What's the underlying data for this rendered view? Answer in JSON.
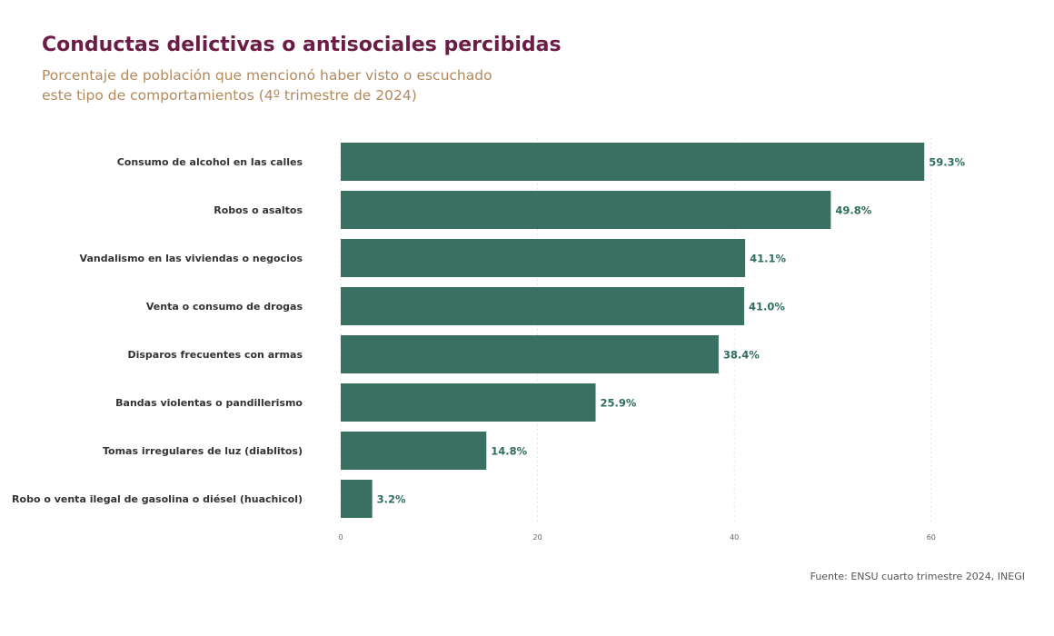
{
  "title": "Conductas delictivas o antisociales percibidas",
  "subtitle": "Porcentaje de población que mencionó haber visto o escuchado este tipo de comportamientos (4º trimestre de 2024)",
  "source": "Fuente: ENSU cuarto trimestre 2024, INEGI",
  "colors": {
    "bar": "#3a7061",
    "value_label": "#2f6d5e",
    "title": "#6b1d45",
    "subtitle": "#b38a5e"
  },
  "chart_data": {
    "type": "bar",
    "orientation": "horizontal",
    "categories": [
      "Consumo de alcohol en las calles",
      "Robos o asaltos",
      "Vandalismo en las viviendas o negocios",
      "Venta o consumo de drogas",
      "Disparos frecuentes con armas",
      "Bandas violentas o pandillerismo",
      "Tomas irregulares de luz (diablitos)",
      "Robo o venta ilegal de gasolina o diésel (huachicol)"
    ],
    "values": [
      59.3,
      49.8,
      41.1,
      41.0,
      38.4,
      25.9,
      14.8,
      3.2
    ],
    "data_labels": [
      "59.3%",
      "49.8%",
      "41.1%",
      "41.0%",
      "38.4%",
      "25.9%",
      "14.8%",
      "3.2%"
    ],
    "xlim": [
      0,
      60
    ],
    "xticks": [
      0,
      20,
      40,
      60
    ],
    "grid": true,
    "legend": false,
    "xlabel": "",
    "ylabel": ""
  }
}
